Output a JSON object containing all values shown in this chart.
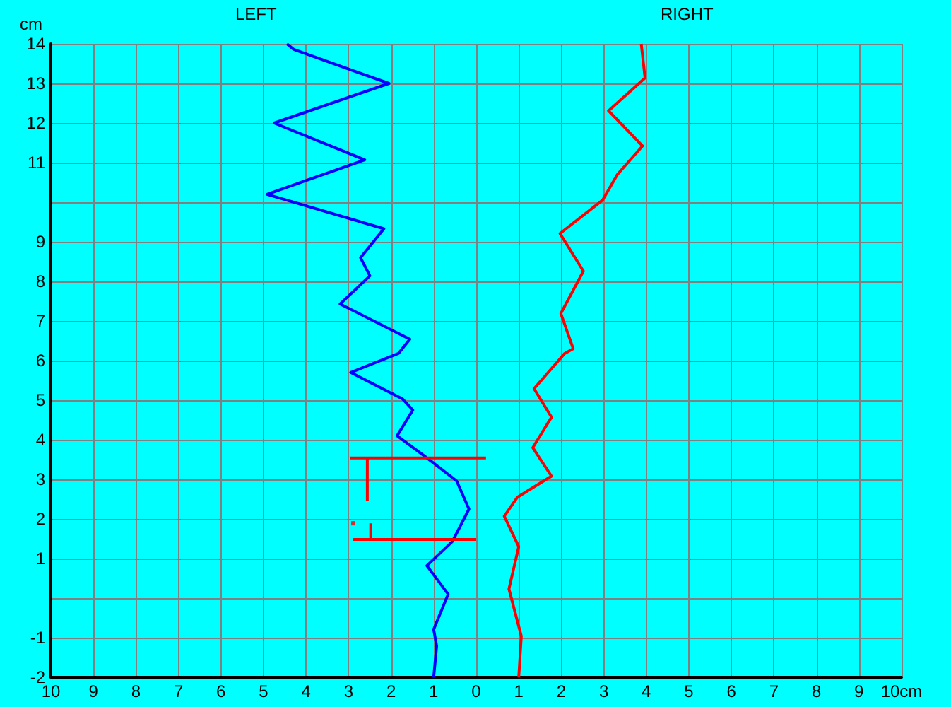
{
  "chart_data": {
    "type": "line",
    "ylabel": "cm",
    "annotations": [
      "LEFT",
      "RIGHT"
    ],
    "xlim": [
      -10,
      10
    ],
    "xticks": [
      {
        "value": -10,
        "label": "10"
      },
      {
        "value": -9,
        "label": "9"
      },
      {
        "value": -8,
        "label": "8"
      },
      {
        "value": -7,
        "label": "7"
      },
      {
        "value": -6,
        "label": "6"
      },
      {
        "value": -5,
        "label": "5"
      },
      {
        "value": -4,
        "label": "4"
      },
      {
        "value": -3,
        "label": "3"
      },
      {
        "value": -2,
        "label": "2"
      },
      {
        "value": -1,
        "label": "1"
      },
      0,
      1,
      2,
      3,
      4,
      5,
      6,
      7,
      8,
      9,
      {
        "value": 10,
        "label": "10cm"
      }
    ],
    "ylim": [
      -2,
      14
    ],
    "yticks": [
      -2,
      -1,
      {
        "value": 0,
        "label": null
      },
      1,
      2,
      3,
      4,
      5,
      6,
      7,
      8,
      9,
      {
        "value": 10,
        "label": null
      },
      11,
      12,
      13,
      14
    ],
    "grid": true,
    "marker": "none",
    "line_style": "solid",
    "series": [
      {
        "color": "#0000ff",
        "x": [
          -4.45,
          -4.29,
          -2.05,
          -4.75,
          -2.62,
          -4.92,
          -2.17,
          -2.72,
          -2.5,
          -3.2,
          -1.56,
          -1.83,
          -2.95,
          -1.73,
          -1.49,
          -1.86,
          -1.23,
          -0.46,
          -0.17,
          -0.56,
          -1.16,
          -0.66,
          -1.0,
          -0.93,
          -1.0
        ],
        "values": [
          14,
          13.86,
          13,
          12,
          11.07,
          10.2,
          9.33,
          8.6,
          8.14,
          7.43,
          6.54,
          6.18,
          5.7,
          5.03,
          4.75,
          4.1,
          3.6,
          2.96,
          2.25,
          1.43,
          0.82,
          0.1,
          -0.79,
          -1.21,
          -2
        ]
      },
      {
        "color": "#ff0000",
        "x": [
          3.88,
          3.97,
          3.11,
          3.91,
          3.32,
          2.97,
          1.97,
          2.52,
          1.99,
          2.28,
          2.08,
          1.36,
          1.77,
          1.33,
          1.77,
          0.97,
          0.66,
          1.0,
          0.77,
          1.06,
          1.0
        ],
        "values": [
          14,
          13.14,
          12.31,
          11.42,
          10.7,
          10.05,
          9.21,
          8.26,
          7.19,
          6.3,
          6.18,
          5.29,
          4.57,
          3.8,
          3.08,
          2.55,
          2.07,
          1.3,
          0.23,
          -0.96,
          -2
        ]
      },
      {
        "color": "#ff0000",
        "x": [
          -2.96,
          0.23,
          null,
          -2.56,
          -2.56,
          null,
          -2.89,
          0,
          null,
          -2.48,
          -2.48
        ],
        "values": [
          3.54,
          3.54,
          null,
          3.54,
          2.46,
          null,
          1.48,
          1.48,
          null,
          1.48,
          1.89
        ]
      },
      {
        "type": "scatter",
        "marker": "square",
        "color": "#ff0000",
        "x": [
          -2.89
        ],
        "values": [
          1.89
        ]
      }
    ]
  }
}
